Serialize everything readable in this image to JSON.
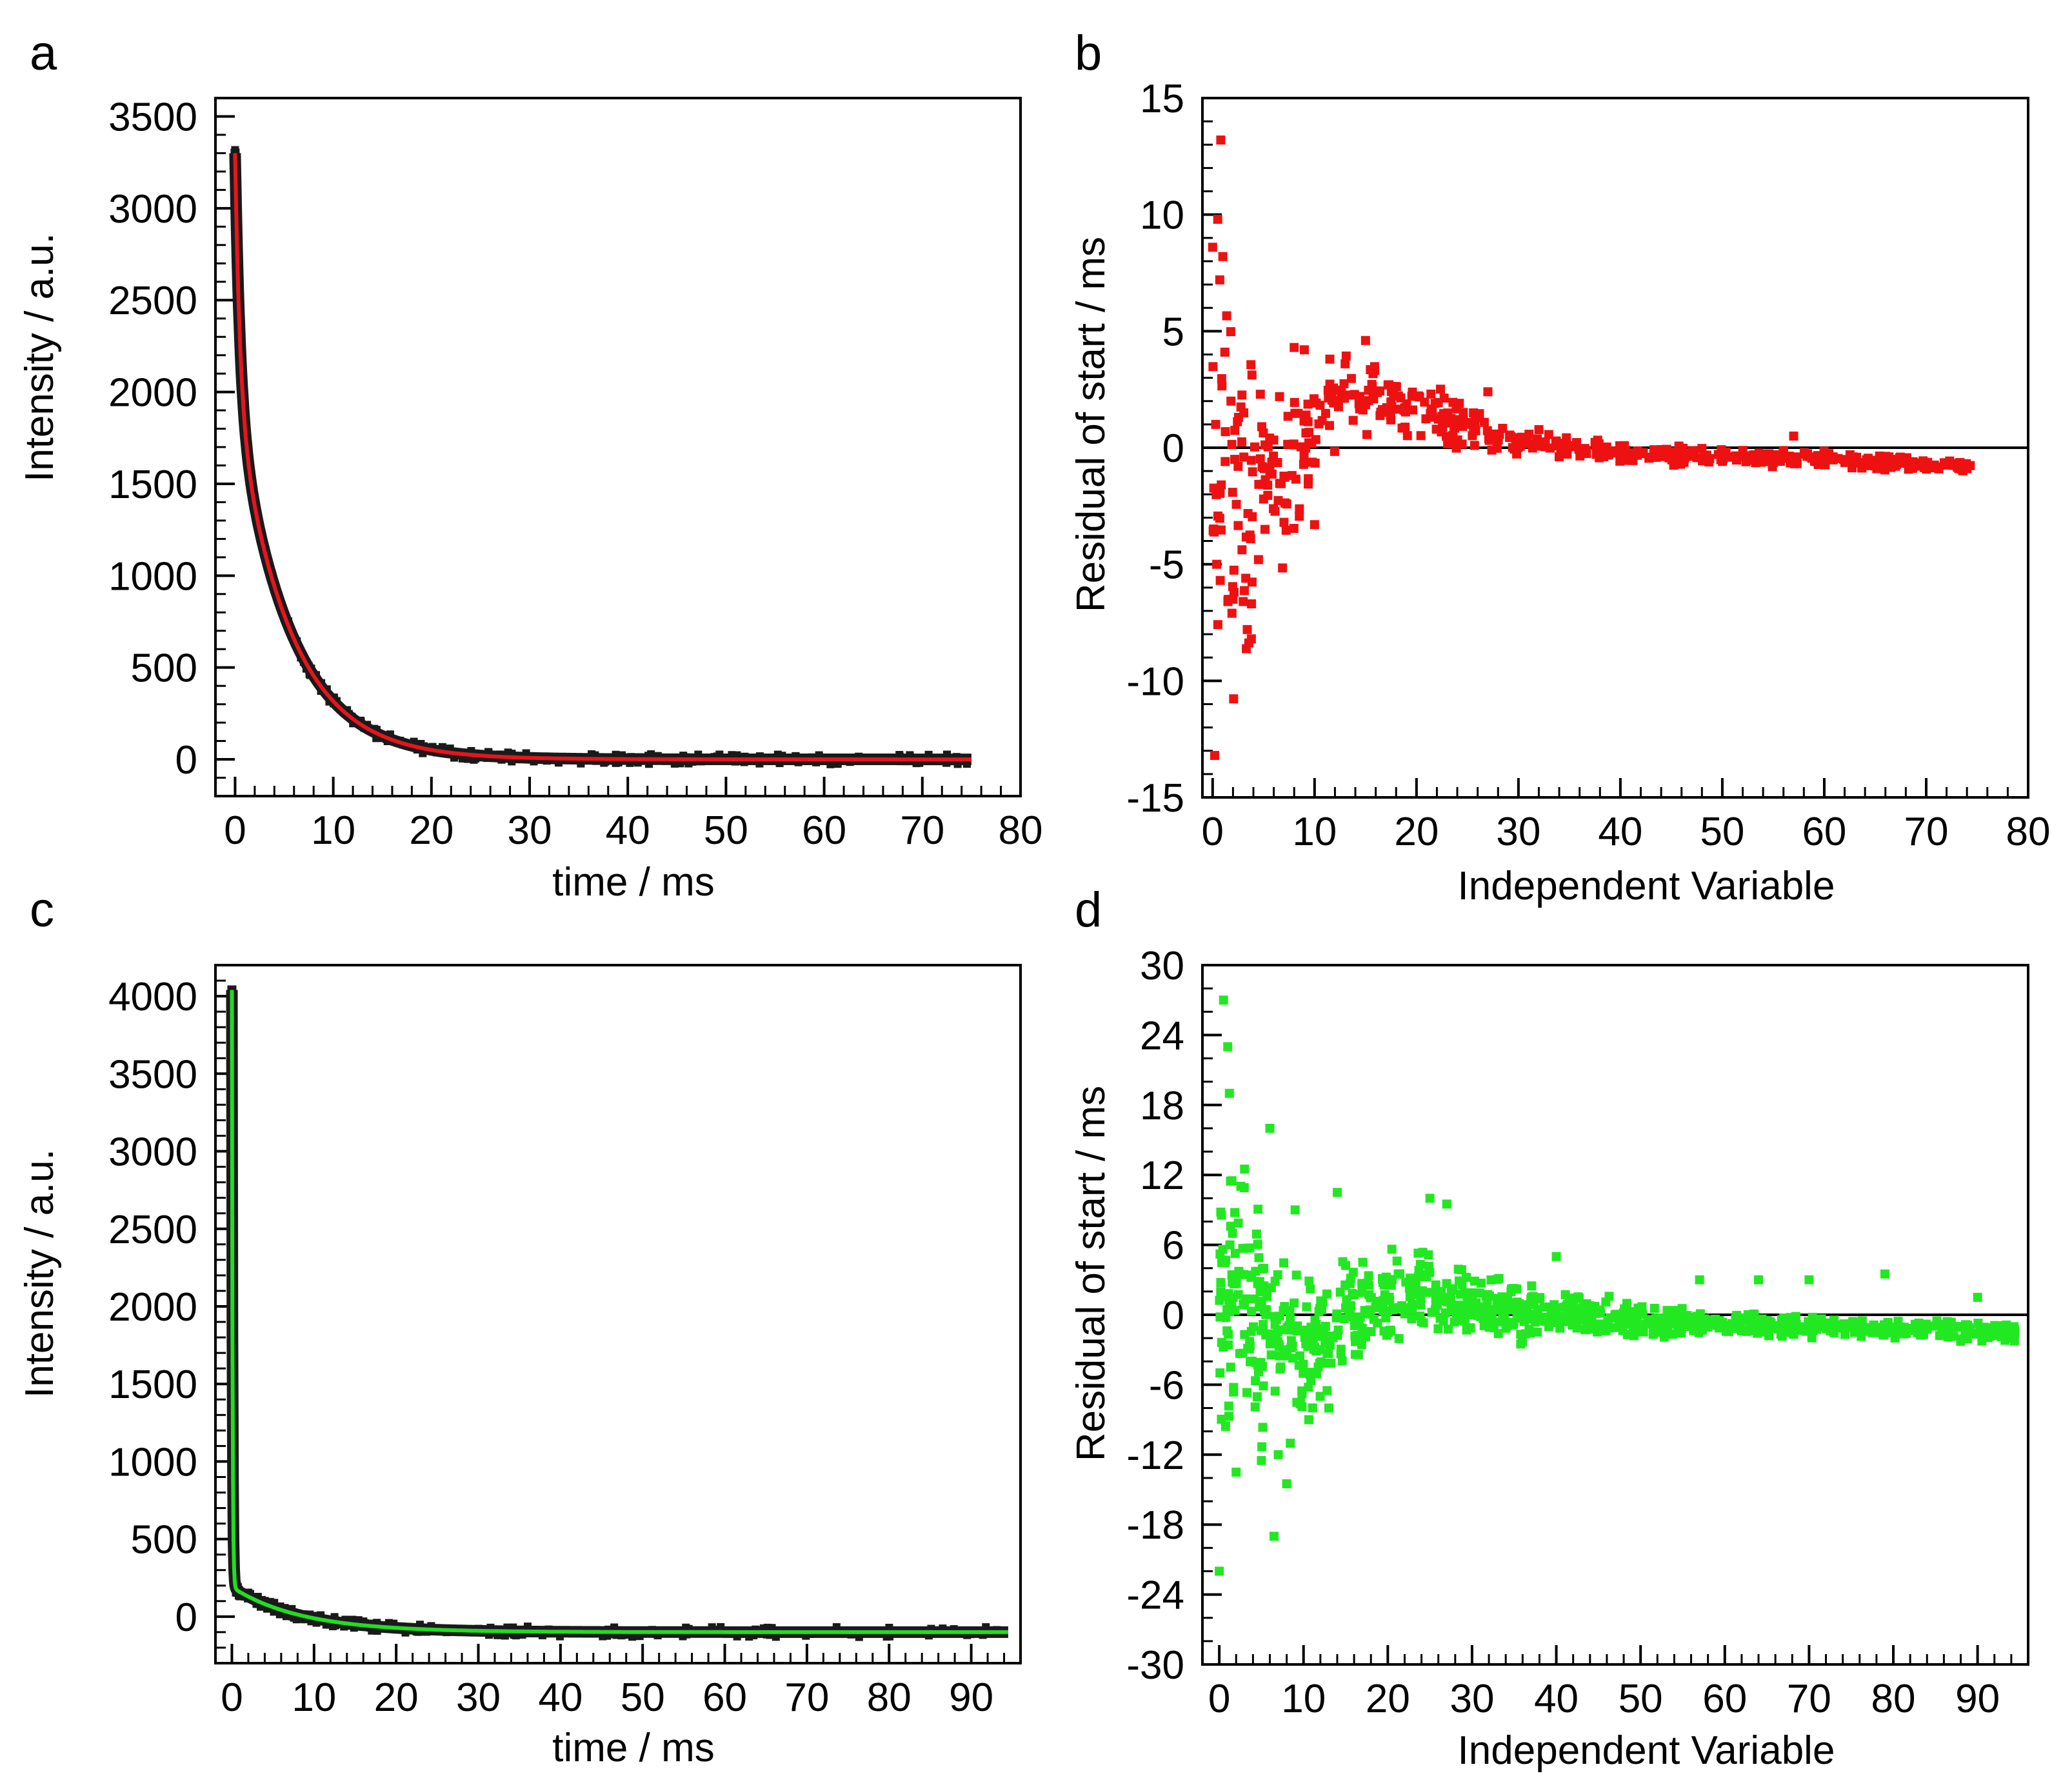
{
  "figure": {
    "panels": [
      {
        "id": "a",
        "letter": "a"
      },
      {
        "id": "b",
        "letter": "b"
      },
      {
        "id": "c",
        "letter": "c"
      },
      {
        "id": "d",
        "letter": "d"
      }
    ]
  },
  "colors": {
    "axis": "#000000",
    "data_points": "#1a1a1a",
    "fit_red": "#e8141e",
    "fit_green": "#22dd22",
    "residual_red": "#ee1111",
    "residual_green": "#22e822",
    "zero_line": "#000000"
  },
  "chart_data": [
    {
      "id": "a",
      "type": "line",
      "title": "",
      "xlabel": "time / ms",
      "ylabel": "Intensity / a.u.",
      "xlim": [
        -2,
        80
      ],
      "ylim": [
        -200,
        3600
      ],
      "xticks": [
        0,
        10,
        20,
        30,
        40,
        50,
        60,
        70,
        80
      ],
      "yticks": [
        0,
        500,
        1000,
        1500,
        2000,
        2500,
        3000,
        3500
      ],
      "x_minor_step": 2,
      "y_minor_step": 100,
      "series": [
        {
          "name": "measured decay",
          "style": "points",
          "color": "#1a1a1a",
          "model": {
            "x_range": [
              0,
              75
            ],
            "baseline": 0,
            "components": [
              {
                "amplitude": 1350,
                "tau_ms": 0.5
              },
              {
                "amplitude": 1950,
                "tau_ms": 5.5
              }
            ]
          }
        },
        {
          "name": "fit",
          "style": "line",
          "color": "#e8141e",
          "model": {
            "x_range": [
              0,
              75
            ],
            "baseline": 0,
            "components": [
              {
                "amplitude": 1350,
                "tau_ms": 0.5
              },
              {
                "amplitude": 1950,
                "tau_ms": 5.5
              }
            ]
          }
        }
      ]
    },
    {
      "id": "b",
      "type": "scatter",
      "title": "",
      "xlabel": "Independent Variable",
      "ylabel": "Residual of start / ms",
      "xlim": [
        -1,
        80
      ],
      "ylim": [
        -15,
        15
      ],
      "xticks": [
        0,
        10,
        20,
        30,
        40,
        50,
        60,
        70,
        80
      ],
      "yticks": [
        -15,
        -10,
        -5,
        0,
        5,
        10,
        15
      ],
      "x_minor_step": 2,
      "y_minor_step": 1,
      "zero_line": 0,
      "series": [
        {
          "name": "residuals",
          "color": "#ee1111",
          "x_range": [
            0,
            74.5
          ],
          "count": 560,
          "points": [
            [
              0,
              8.6
            ],
            [
              0.2,
              -13.2
            ],
            [
              0.3,
              1.0
            ],
            [
              0.4,
              -5.0
            ],
            [
              0.5,
              9.8
            ],
            [
              0.7,
              7.2
            ],
            [
              0.8,
              13.2
            ],
            [
              1.0,
              8.2
            ],
            [
              1.2,
              4.1
            ],
            [
              1.5,
              -6.6
            ],
            [
              1.8,
              2.0
            ],
            [
              2.0,
              -6.5
            ],
            [
              2.5,
              -0.8
            ],
            [
              3.0,
              -6.6
            ],
            [
              3.4,
              -7.8
            ],
            [
              3.8,
              -8.2
            ],
            [
              4.5,
              -4.8
            ],
            [
              5.0,
              -2.2
            ],
            [
              7.0,
              -3.2
            ],
            [
              8.0,
              4.3
            ],
            [
              9.0,
              4.2
            ],
            [
              10.0,
              -3.3
            ],
            [
              11.5,
              3.8
            ],
            [
              13.0,
              3.6
            ],
            [
              15.0,
              4.6
            ],
            [
              20.0,
              2.2
            ],
            [
              25.0,
              1.0
            ],
            [
              27.0,
              2.4
            ],
            [
              40.0,
              0.0
            ],
            [
              57.0,
              0.5
            ],
            [
              60.0,
              -0.6
            ],
            [
              74.0,
              -0.9
            ]
          ],
          "envelope": [
            [
              0,
              9
            ],
            [
              2,
              8
            ],
            [
              4,
              5.5
            ],
            [
              6,
              3.5
            ],
            [
              8,
              3.0
            ],
            [
              10,
              2.2
            ],
            [
              14,
              1.6
            ],
            [
              20,
              1.2
            ],
            [
              30,
              0.7
            ],
            [
              40,
              0.45
            ],
            [
              50,
              0.35
            ],
            [
              60,
              0.3
            ],
            [
              75,
              0.25
            ]
          ],
          "trend": [
            [
              0,
              -2.0
            ],
            [
              2,
              -2.0
            ],
            [
              4,
              -2.2
            ],
            [
              6,
              -1.5
            ],
            [
              8,
              -0.5
            ],
            [
              10,
              1.0
            ],
            [
              12,
              1.8
            ],
            [
              15,
              2.2
            ],
            [
              18,
              2.0
            ],
            [
              22,
              1.4
            ],
            [
              26,
              0.8
            ],
            [
              30,
              0.2
            ],
            [
              35,
              0.0
            ],
            [
              40,
              -0.2
            ],
            [
              50,
              -0.4
            ],
            [
              60,
              -0.5
            ],
            [
              75,
              -0.8
            ]
          ]
        }
      ]
    },
    {
      "id": "c",
      "type": "line",
      "title": "",
      "xlabel": "time / ms",
      "ylabel": "Intensity / a.u.",
      "xlim": [
        -2,
        96
      ],
      "ylim": [
        -300,
        4200
      ],
      "xticks": [
        0,
        10,
        20,
        30,
        40,
        50,
        60,
        70,
        80,
        90
      ],
      "yticks": [
        0,
        500,
        1000,
        1500,
        2000,
        2500,
        3000,
        3500,
        4000
      ],
      "x_minor_step": 2,
      "y_minor_step": 100,
      "series": [
        {
          "name": "measured decay",
          "style": "points",
          "color": "#1a1a1a",
          "model": {
            "x_range": [
              0,
              94.5
            ],
            "baseline": -100,
            "components": [
              {
                "amplitude": 3850,
                "tau_ms": 0.08
              },
              {
                "amplitude": 290,
                "tau_ms": 8.5
              }
            ]
          }
        },
        {
          "name": "fit",
          "style": "line",
          "color": "#22dd22",
          "model": {
            "x_range": [
              0,
              94.5
            ],
            "baseline": -100,
            "components": [
              {
                "amplitude": 3850,
                "tau_ms": 0.08
              },
              {
                "amplitude": 290,
                "tau_ms": 8.5
              }
            ]
          }
        }
      ]
    },
    {
      "id": "d",
      "type": "scatter",
      "title": "",
      "xlabel": "Independent Variable",
      "ylabel": "Residual of start / ms",
      "xlim": [
        -2,
        96
      ],
      "ylim": [
        -30,
        30
      ],
      "xticks": [
        0,
        10,
        20,
        30,
        40,
        50,
        60,
        70,
        80,
        90
      ],
      "yticks": [
        -30,
        -24,
        -18,
        -12,
        -6,
        0,
        6,
        12,
        18,
        24,
        30
      ],
      "x_minor_step": 2,
      "y_minor_step": 2,
      "zero_line": 0,
      "series": [
        {
          "name": "residuals",
          "color": "#22e822",
          "x_range": [
            0,
            94.5
          ],
          "count": 950,
          "points": [
            [
              0,
              -22
            ],
            [
              0.5,
              27
            ],
            [
              1.0,
              23
            ],
            [
              1.2,
              19
            ],
            [
              1.5,
              11.5
            ],
            [
              2.0,
              -13.5
            ],
            [
              3.0,
              12.5
            ],
            [
              5.0,
              -12.5
            ],
            [
              6.0,
              16
            ],
            [
              6.5,
              -19
            ],
            [
              7.0,
              -12
            ],
            [
              8.0,
              -14.5
            ],
            [
              9.0,
              9
            ],
            [
              13.0,
              -8
            ],
            [
              14.0,
              10.5
            ],
            [
              25.0,
              10
            ],
            [
              27.0,
              9.5
            ],
            [
              40.0,
              5
            ],
            [
              57.0,
              3
            ],
            [
              64.0,
              3
            ],
            [
              70.0,
              3
            ],
            [
              79.0,
              3.5
            ],
            [
              90.0,
              1.5
            ],
            [
              94.0,
              -2.0
            ]
          ],
          "envelope": [
            [
              0,
              13
            ],
            [
              3,
              10
            ],
            [
              6,
              8
            ],
            [
              10,
              6
            ],
            [
              15,
              5
            ],
            [
              20,
              4
            ],
            [
              25,
              3.5
            ],
            [
              30,
              3.0
            ],
            [
              40,
              2.0
            ],
            [
              50,
              1.5
            ],
            [
              60,
              1.1
            ],
            [
              70,
              0.9
            ],
            [
              80,
              0.8
            ],
            [
              95,
              0.7
            ]
          ],
          "trend": [
            [
              0,
              3.0
            ],
            [
              3,
              1.0
            ],
            [
              6,
              -2.0
            ],
            [
              10,
              -3.0
            ],
            [
              13,
              -2.0
            ],
            [
              16,
              0.0
            ],
            [
              20,
              1.5
            ],
            [
              24,
              2.0
            ],
            [
              28,
              1.2
            ],
            [
              32,
              0.5
            ],
            [
              40,
              0.0
            ],
            [
              50,
              -0.5
            ],
            [
              60,
              -0.8
            ],
            [
              70,
              -1.0
            ],
            [
              80,
              -1.2
            ],
            [
              95,
              -1.5
            ]
          ]
        }
      ]
    }
  ]
}
